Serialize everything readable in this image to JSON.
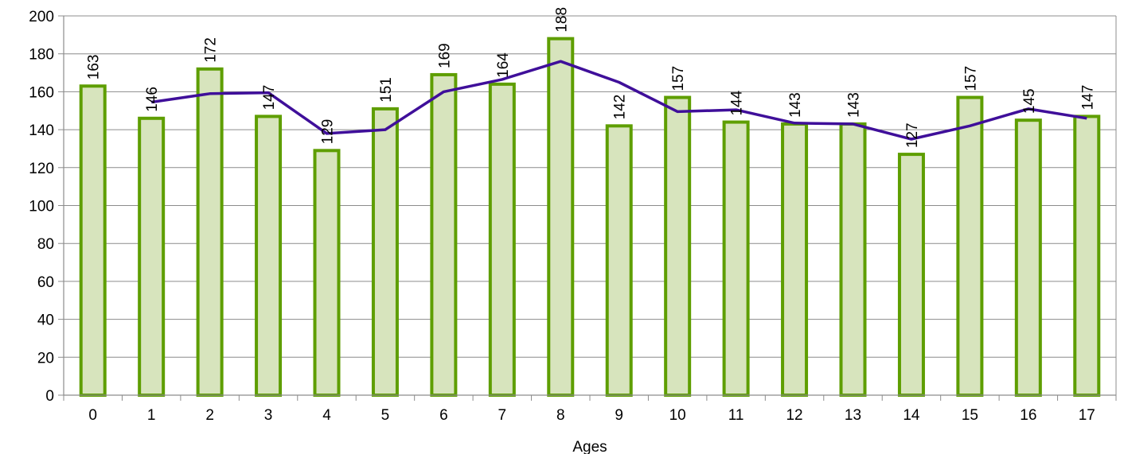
{
  "chart_data": {
    "type": "bar",
    "xlabel": "Ages",
    "ylabel": "",
    "title": "",
    "ylim": [
      0,
      200
    ],
    "ytick_step": 20,
    "grid": true,
    "categories": [
      "0",
      "1",
      "2",
      "3",
      "4",
      "5",
      "6",
      "7",
      "8",
      "9",
      "10",
      "11",
      "12",
      "13",
      "14",
      "15",
      "16",
      "17"
    ],
    "series": [
      {
        "type": "bar",
        "values": [
          163,
          146,
          172,
          147,
          129,
          151,
          169,
          164,
          188,
          142,
          157,
          144,
          143,
          143,
          127,
          157,
          145,
          147
        ],
        "fill": "#d7e4bd",
        "stroke": "#5e9e00"
      },
      {
        "type": "line",
        "values": [
          null,
          154.5,
          159,
          159.5,
          138,
          140,
          160,
          166.5,
          176,
          165,
          149.5,
          150.5,
          143.5,
          143,
          135,
          142,
          151,
          146
        ],
        "color": "#3f0f9a"
      }
    ],
    "data_labels": [
      "163",
      "146",
      "172",
      "147",
      "129",
      "151",
      "169",
      "164",
      "188",
      "142",
      "157",
      "144",
      "143",
      "143",
      "127",
      "157",
      "145",
      "147"
    ]
  }
}
